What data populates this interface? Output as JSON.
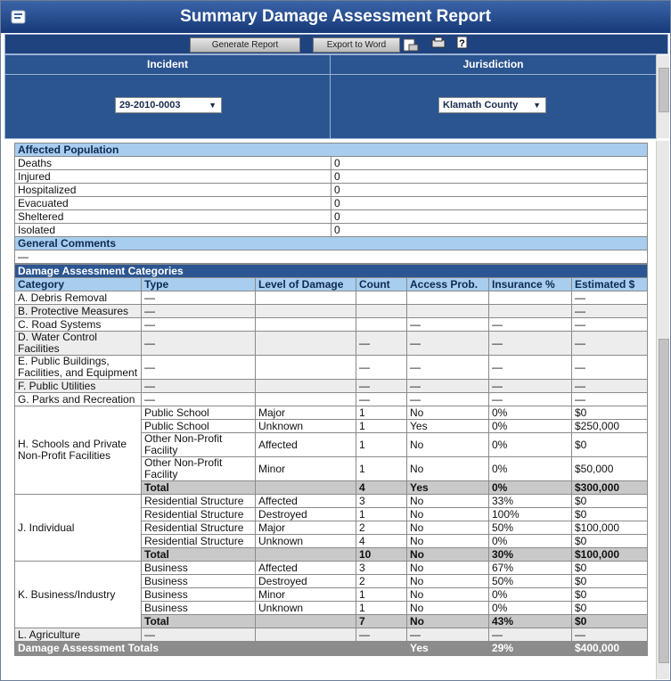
{
  "header": {
    "title": "Summary Damage Assessment Report",
    "buttons": [
      "Generate Report",
      "Export to Word"
    ],
    "incident_label": "Incident",
    "incident_value": "29-2010-0003",
    "jurisdiction_label": "Jurisdiction",
    "jurisdiction_value": "Klamath County"
  },
  "affected_population": {
    "title": "Affected Population",
    "rows": [
      [
        "Deaths",
        0
      ],
      [
        "Injured",
        0
      ],
      [
        "Hospitalized",
        0
      ],
      [
        "Evacuated",
        0
      ],
      [
        "Sheltered",
        0
      ],
      [
        "Isolated",
        0
      ]
    ]
  },
  "general_comments": {
    "title": "General Comments",
    "text": "—"
  },
  "damage_assessment": {
    "title": "Damage Assessment Categories",
    "columns": [
      "Category",
      "Type",
      "Level of Damage",
      "Count",
      "Access Prob.",
      "Insurance %",
      "Estimated $"
    ],
    "rows": [
      [
        "A. Debris Removal",
        "—",
        null,
        null,
        null,
        null,
        "—"
      ],
      [
        "B. Protective Measures",
        "—",
        null,
        null,
        null,
        null,
        "—"
      ],
      [
        "C. Road Systems",
        "—",
        null,
        null,
        "—",
        "—",
        "—"
      ],
      [
        "D. Water Control Facilities",
        "—",
        null,
        "—",
        "—",
        "—",
        "—"
      ],
      [
        "E. Public Buildings, Facilities, and Equipment",
        "—",
        null,
        "—",
        "—",
        "—",
        "—"
      ],
      [
        "F. Public Utilities",
        "—",
        null,
        "—",
        "—",
        "—",
        "—"
      ],
      [
        "G. Parks and Recreation",
        "—",
        null,
        "—",
        "—",
        "—",
        "—"
      ],
      {
        "category": "H. Schools and Private Non-Profit Facilities",
        "items": [
          [
            "Public School",
            "Major",
            1,
            "No",
            "0%",
            "$0"
          ],
          [
            "Public School",
            "Unknown",
            1,
            "Yes",
            "0%",
            "$250,000"
          ],
          [
            "Other Non-Profit Facility",
            "Affected",
            1,
            "No",
            "0%",
            "$0"
          ],
          [
            "Other Non-Profit Facility",
            "Minor",
            1,
            "No",
            "0%",
            "$50,000"
          ]
        ],
        "total": [
          "Total",
          null,
          4,
          "Yes",
          "0%",
          "$300,000"
        ]
      },
      {
        "category": "J. Individual",
        "items": [
          [
            "Residential Structure",
            "Affected",
            3,
            "No",
            "33%",
            "$0"
          ],
          [
            "Residential Structure",
            "Destroyed",
            1,
            "No",
            "100%",
            "$0"
          ],
          [
            "Residential Structure",
            "Major",
            2,
            "No",
            "50%",
            "$100,000"
          ],
          [
            "Residential Structure",
            "Unknown",
            4,
            "No",
            "0%",
            "$0"
          ]
        ],
        "total": [
          "Total",
          null,
          10,
          "No",
          "30%",
          "$100,000"
        ]
      },
      {
        "category": "K. Business/Industry",
        "items": [
          [
            "Business",
            "Affected",
            3,
            "No",
            "67%",
            "$0"
          ],
          [
            "Business",
            "Destroyed",
            2,
            "No",
            "50%",
            "$0"
          ],
          [
            "Business",
            "Minor",
            1,
            "No",
            "0%",
            "$0"
          ],
          [
            "Business",
            "Unknown",
            1,
            "No",
            "0%",
            "$0"
          ]
        ],
        "total": [
          "Total",
          null,
          7,
          "No",
          "43%",
          "$0"
        ]
      },
      [
        "L. Agriculture",
        "—",
        null,
        "—",
        "—",
        "—",
        "—"
      ]
    ],
    "totals": {
      "label": "Damage Assessment Totals",
      "access": "Yes",
      "insurance": "29%",
      "estimated": "$400,000"
    }
  }
}
